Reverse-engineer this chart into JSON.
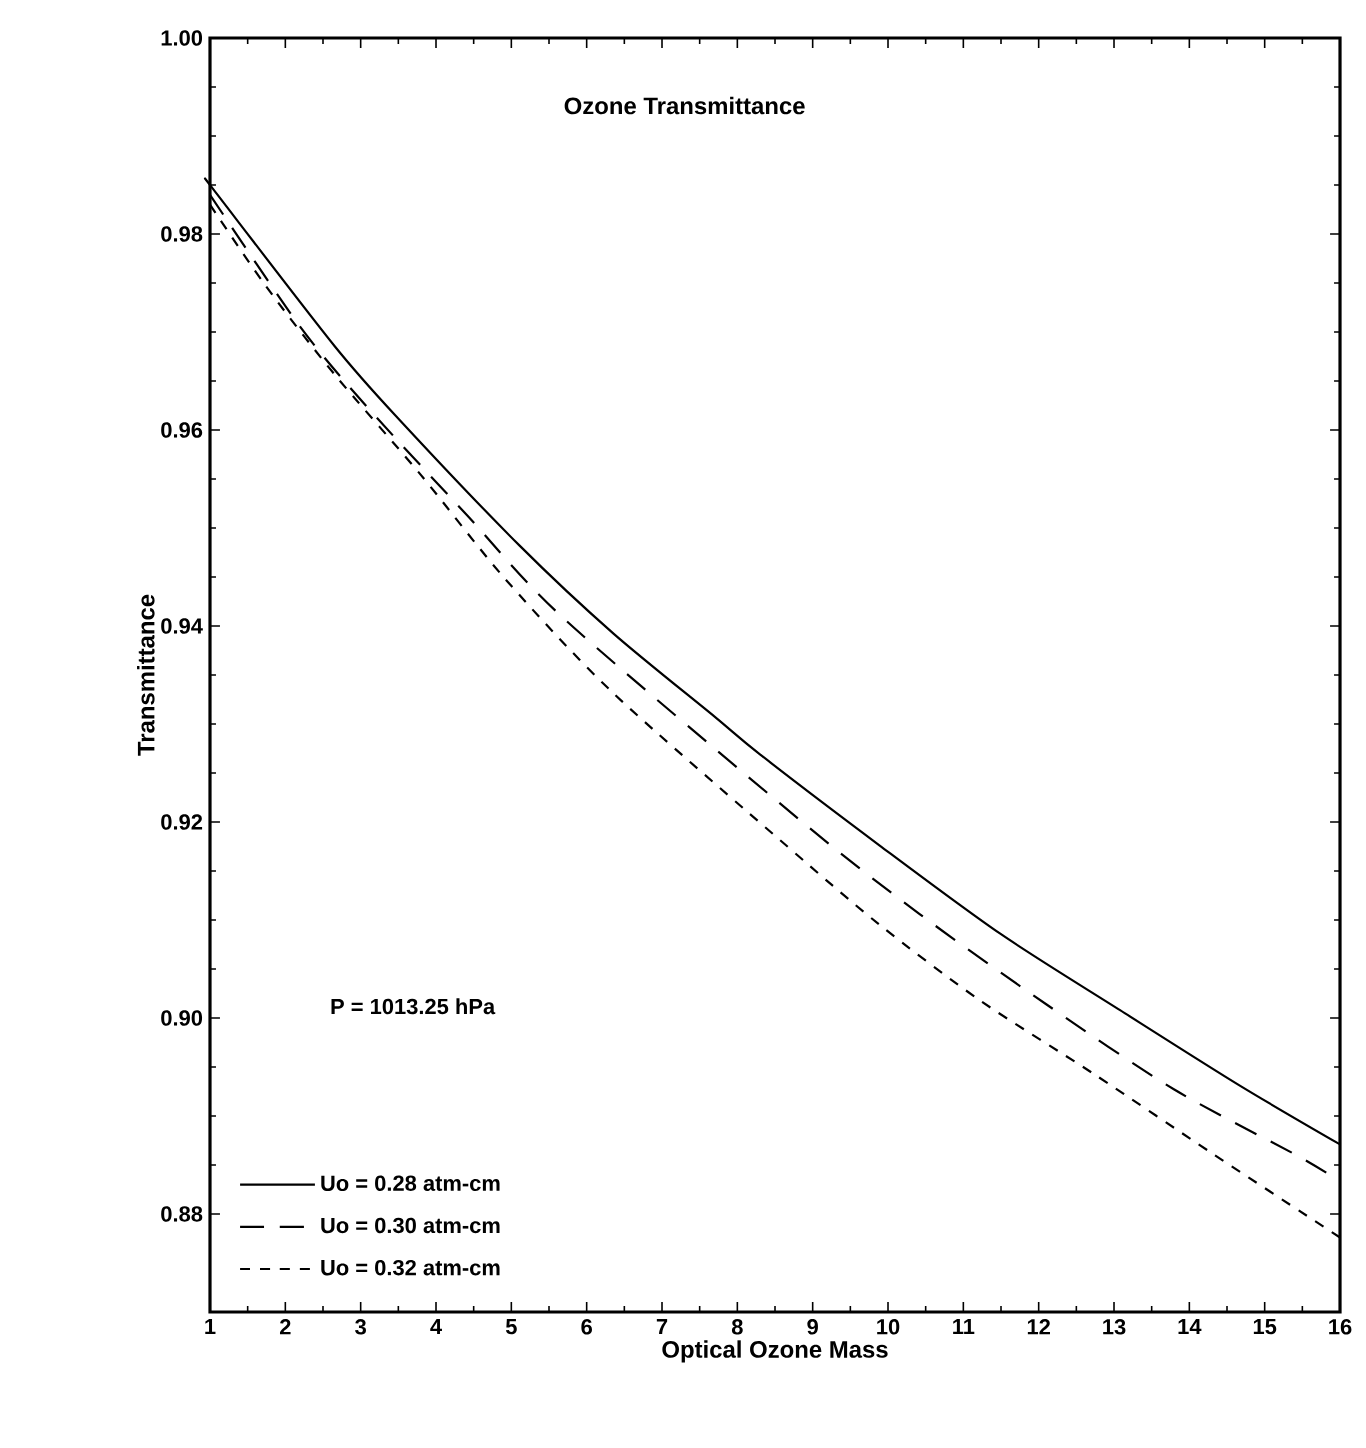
{
  "chart_data": {
    "type": "line",
    "title": "Ozone Transmittance",
    "xlabel": "Optical Ozone Mass",
    "ylabel": "Transmittance",
    "annotations": [
      "P = 1013.25 hPa"
    ],
    "xlim": [
      1,
      16
    ],
    "xticks": [
      1,
      2,
      3,
      4,
      5,
      6,
      7,
      8,
      9,
      10,
      11,
      12,
      13,
      14,
      15,
      16
    ],
    "ylim": [
      0.87,
      1.0
    ],
    "yticks": [
      {
        "value": 0.88,
        "label": "0.88"
      },
      {
        "value": 0.9,
        "label": "0.90"
      },
      {
        "value": 0.92,
        "label": "0.92"
      },
      {
        "value": 0.94,
        "label": "0.94"
      },
      {
        "value": 0.96,
        "label": "0.96"
      },
      {
        "value": 0.98,
        "label": "0.98"
      },
      {
        "value": 1.0,
        "label": "1.00"
      }
    ],
    "grid": false,
    "legend": "bottom left",
    "marker": "none",
    "series": [
      {
        "name": "Uo = 0.28 atm-cm",
        "color": "#000000",
        "line_style": "solid",
        "x": [
          1,
          1.05,
          2.65,
          3.52,
          5.11,
          6.36,
          7.69,
          8.3,
          9.89,
          11.49,
          13.08,
          14.67,
          16
        ],
        "values": [
          0.985,
          0.9845,
          0.9686,
          0.961,
          0.9482,
          0.9392,
          0.9308,
          0.9269,
          0.9176,
          0.9086,
          0.9008,
          0.8931,
          0.8871
        ]
      },
      {
        "name": "Uo = 0.30 atm-cm",
        "color": "#000000",
        "line_style": "dashed",
        "x": [
          1,
          2.19,
          3.08,
          4.4,
          5.72,
          8.83,
          10.42,
          12.1,
          13.8,
          15.47,
          16
        ],
        "values": [
          0.984,
          0.9706,
          0.9624,
          0.9514,
          0.9406,
          0.9202,
          0.9106,
          0.9014,
          0.8927,
          0.8858,
          0.8833
        ]
      },
      {
        "name": "Uo = 0.32 atm-cm",
        "color": "#000000",
        "line_style": "dotted",
        "x": [
          1,
          1.74,
          2.65,
          3.79,
          4.93,
          6.36,
          8.65,
          9.89,
          11.22,
          12.73,
          14.32,
          16
        ],
        "values": [
          0.983,
          0.9747,
          0.9657,
          0.9555,
          0.9447,
          0.9331,
          0.9176,
          0.9095,
          0.9018,
          0.8943,
          0.8861,
          0.8776
        ]
      }
    ]
  }
}
